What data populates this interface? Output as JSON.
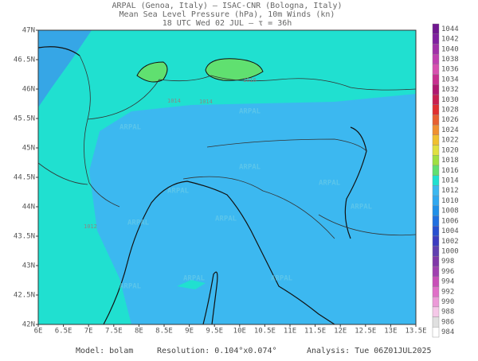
{
  "header": {
    "line1": "ARPAL (Genoa, Italy)  –  ISAC-CNR (Bologna, Italy)",
    "line2": "Mean Sea Level Pressure (hPa), 10m Winds (kn)",
    "line3": "18 UTC Wed 02 JUL  –  τ = 36h"
  },
  "map": {
    "lon_labels": [
      "6E",
      "6.5E",
      "7E",
      "7.5E",
      "8E",
      "8.5E",
      "9E",
      "9.5E",
      "10E",
      "10.5E",
      "11E",
      "11.5E",
      "12E",
      "12.5E",
      "13E",
      "13.5E"
    ],
    "lat_labels": [
      "42N",
      "42.5N",
      "43N",
      "43.5N",
      "44N",
      "44.5N",
      "45N",
      "45.5N",
      "46N",
      "46.5N",
      "47N"
    ],
    "watermark": "ARPAL",
    "isobar_labels": [
      "1014",
      "1016",
      "1014",
      "1012"
    ]
  },
  "colorbar": {
    "levels": [
      984,
      986,
      988,
      990,
      992,
      994,
      996,
      998,
      1000,
      1002,
      1004,
      1006,
      1008,
      1010,
      1012,
      1014,
      1016,
      1018,
      1020,
      1022,
      1024,
      1026,
      1028,
      1030,
      1032,
      1034,
      1036,
      1038,
      1040,
      1042,
      1044
    ],
    "colors": [
      "#ffffff",
      "#e0e0e0",
      "#f5c8e8",
      "#ec9ad8",
      "#e070c8",
      "#c850b8",
      "#a040b0",
      "#8038a8",
      "#6040b0",
      "#3c3cc0",
      "#2850d0",
      "#2070e0",
      "#2090e8",
      "#30a8f0",
      "#3cb8f0",
      "#20e0d0",
      "#60e070",
      "#a0e040",
      "#e0e040",
      "#f0c030",
      "#f09030",
      "#e86030",
      "#e03030",
      "#c82050",
      "#b01870",
      "#c83090",
      "#d850b0",
      "#c040b0",
      "#a030a8",
      "#8020a0",
      "#701890"
    ]
  },
  "footer": {
    "model": "Model: bolam",
    "resolution": "Resolution: 0.104°x0.074°",
    "analysis": "Analysis: Tue 06Z01JUL2025"
  }
}
